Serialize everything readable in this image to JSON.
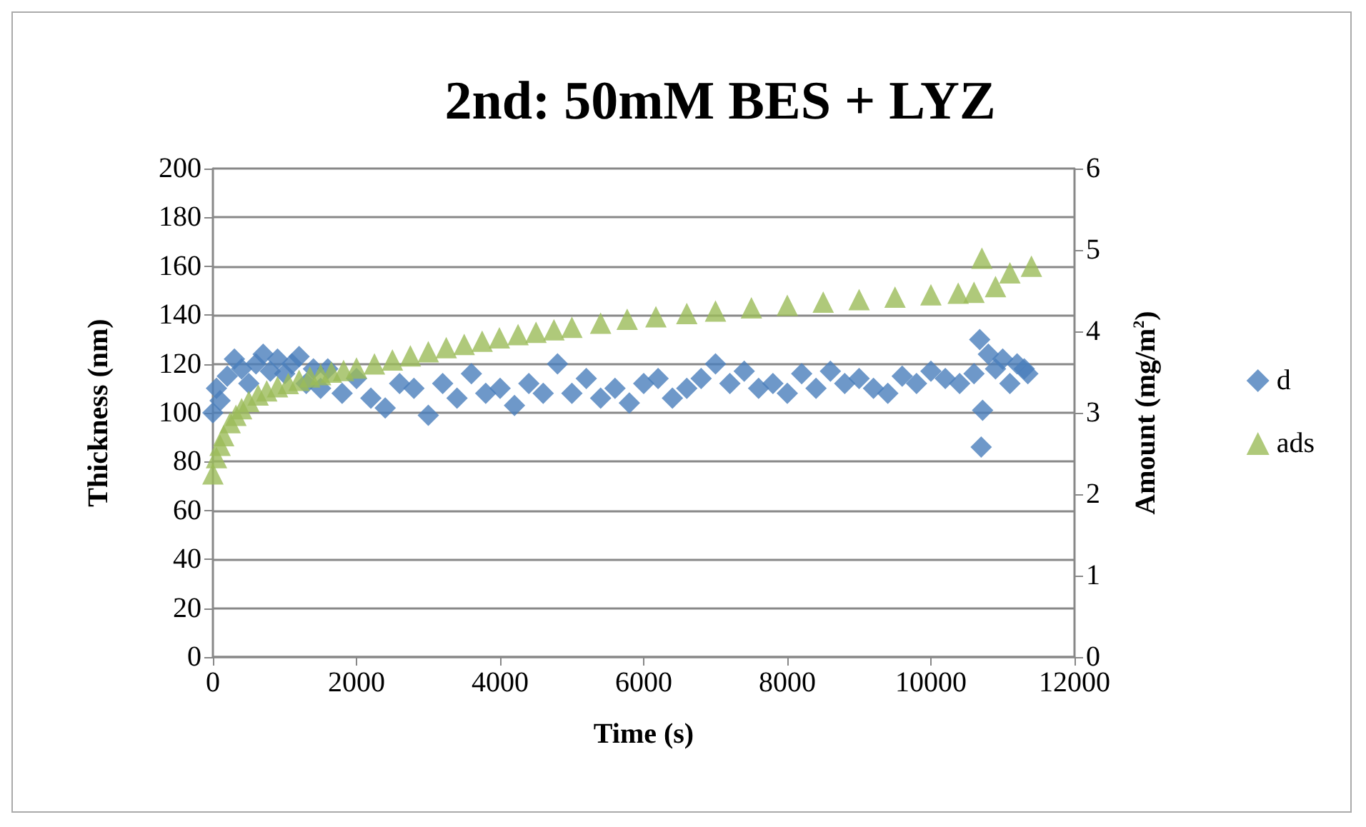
{
  "chart_data": {
    "type": "scatter",
    "title": "2nd: 50mM BES + LYZ",
    "xlabel": "Time (s)",
    "ylabel": "Thickness (nm)",
    "y2label": "Amount (mg/m$^{2}$)",
    "xlim": [
      0,
      12000
    ],
    "xticks": [
      0,
      2000,
      4000,
      6000,
      8000,
      10000,
      12000
    ],
    "ylim": [
      0,
      200
    ],
    "yticks": [
      0,
      20,
      40,
      60,
      80,
      100,
      120,
      140,
      160,
      180,
      200
    ],
    "y2lim": [
      0,
      6
    ],
    "y2ticks": [
      0,
      1,
      2,
      3,
      4,
      5,
      6
    ],
    "grid": "y",
    "legend": "right",
    "series": [
      {
        "name": "d",
        "color": "#4a7ebb",
        "marker": "diamond",
        "x": [
          0,
          50,
          100,
          200,
          300,
          400,
          500,
          600,
          700,
          800,
          900,
          1000,
          1100,
          1200,
          1300,
          1400,
          1500,
          1600,
          1800,
          2000,
          2200,
          2400,
          2600,
          2800,
          3000,
          3200,
          3400,
          3600,
          3800,
          4000,
          4200,
          4400,
          4600,
          4800,
          5000,
          5200,
          5400,
          5600,
          5800,
          6000,
          6200,
          6400,
          6600,
          6800,
          7000,
          7200,
          7400,
          7600,
          7800,
          8000,
          8200,
          8400,
          8600,
          8800,
          9000,
          9200,
          9400,
          9600,
          9800,
          10000,
          10200,
          10400,
          10600,
          10680,
          10700,
          10720,
          10800,
          10900,
          11000,
          11100,
          11200,
          11300,
          11350
        ],
        "values": [
          100,
          110,
          105,
          115,
          122,
          118,
          112,
          120,
          124,
          117,
          122,
          116,
          120,
          123,
          112,
          118,
          110,
          118,
          108,
          114,
          106,
          102,
          112,
          110,
          99,
          112,
          106,
          116,
          108,
          110,
          103,
          112,
          108,
          120,
          108,
          114,
          106,
          110,
          104,
          112,
          114,
          106,
          110,
          114,
          120,
          112,
          117,
          110,
          112,
          108,
          116,
          110,
          117,
          112,
          114,
          110,
          108,
          115,
          112,
          117,
          114,
          112,
          116,
          130,
          86,
          101,
          124,
          118,
          122,
          112,
          120,
          118,
          116
        ]
      },
      {
        "name": "ads",
        "color": "#9bbb59",
        "marker": "triangle",
        "axis": "y2",
        "x": [
          0,
          50,
          100,
          150,
          240,
          320,
          400,
          500,
          630,
          750,
          900,
          1050,
          1200,
          1350,
          1500,
          1650,
          1820,
          2000,
          2250,
          2500,
          2750,
          3000,
          3250,
          3500,
          3750,
          3990,
          4250,
          4500,
          4750,
          5000,
          5400,
          5770,
          6170,
          6600,
          7000,
          7500,
          8000,
          8500,
          9000,
          9500,
          10000,
          10380,
          10600,
          10710,
          10900,
          11100,
          11400
        ],
        "values": [
          2.25,
          2.45,
          2.6,
          2.72,
          2.88,
          2.97,
          3.05,
          3.14,
          3.22,
          3.27,
          3.32,
          3.36,
          3.4,
          3.44,
          3.47,
          3.5,
          3.52,
          3.55,
          3.6,
          3.65,
          3.7,
          3.75,
          3.8,
          3.84,
          3.88,
          3.92,
          3.96,
          3.99,
          4.02,
          4.05,
          4.1,
          4.15,
          4.18,
          4.22,
          4.25,
          4.29,
          4.32,
          4.36,
          4.39,
          4.42,
          4.45,
          4.47,
          4.48,
          4.9,
          4.55,
          4.72,
          4.8
        ]
      }
    ]
  }
}
